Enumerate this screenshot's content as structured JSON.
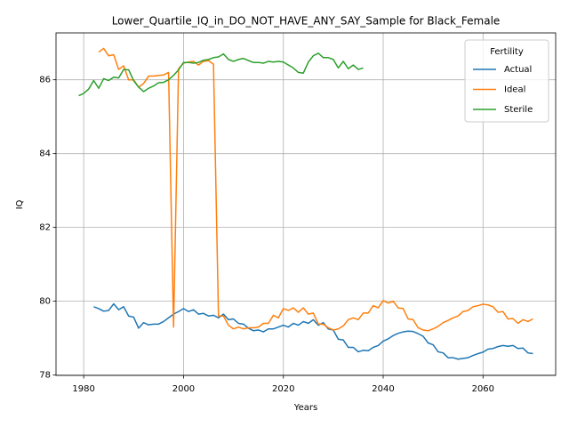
{
  "chart_data": {
    "type": "line",
    "title": "Lower_Quartile_IQ_in_DO_NOT_HAVE_ANY_SAY_Sample for Black_Female",
    "xlabel": "Years",
    "ylabel": "IQ",
    "legend_title": "Fertility",
    "legend": "upper right",
    "grid": true,
    "xlim": [
      1974.45,
      2074.55
    ],
    "xticks": [
      1980,
      2000,
      2020,
      2040,
      2060
    ],
    "ylim": [
      77.99,
      87.27
    ],
    "yticks": [
      78,
      80,
      82,
      84,
      86
    ],
    "x": [
      1979,
      1980,
      1981,
      1982,
      1983,
      1984,
      1985,
      1986,
      1987,
      1988,
      1989,
      1990,
      1991,
      1992,
      1993,
      1994,
      1995,
      1996,
      1997,
      1998,
      1999,
      2000,
      2001,
      2002,
      2003,
      2004,
      2005,
      2006,
      2007,
      2008,
      2009,
      2010,
      2011,
      2012,
      2013,
      2014,
      2015,
      2016,
      2017,
      2018,
      2019,
      2020,
      2021,
      2022,
      2023,
      2024,
      2025,
      2026,
      2027,
      2028,
      2029,
      2030,
      2031,
      2032,
      2033,
      2034,
      2035,
      2036,
      2037,
      2038,
      2039,
      2040,
      2041,
      2042,
      2043,
      2044,
      2045,
      2046,
      2047,
      2048,
      2049,
      2050,
      2051,
      2052,
      2053,
      2054,
      2055,
      2056,
      2057,
      2058,
      2059,
      2060,
      2061,
      2062,
      2063,
      2064,
      2065,
      2066,
      2067,
      2068,
      2069,
      2070
    ],
    "series": [
      {
        "name": "Actual",
        "color": "#1f77b4",
        "values": [
          null,
          null,
          null,
          79.85,
          79.8,
          79.73,
          79.75,
          79.93,
          79.77,
          79.85,
          79.6,
          79.57,
          79.27,
          79.42,
          79.36,
          79.38,
          79.38,
          79.45,
          79.55,
          79.65,
          79.72,
          79.8,
          79.72,
          79.77,
          79.65,
          79.67,
          79.6,
          79.62,
          79.55,
          79.65,
          79.5,
          79.52,
          79.4,
          79.38,
          79.27,
          79.2,
          79.22,
          79.17,
          79.25,
          79.25,
          79.3,
          79.35,
          79.3,
          79.4,
          79.35,
          79.45,
          79.4,
          79.5,
          79.35,
          79.42,
          79.25,
          79.22,
          78.97,
          78.95,
          78.75,
          78.75,
          78.63,
          78.67,
          78.66,
          78.75,
          78.8,
          78.92,
          78.98,
          79.07,
          79.13,
          79.17,
          79.19,
          79.18,
          79.12,
          79.05,
          78.87,
          78.82,
          78.63,
          78.6,
          78.47,
          78.47,
          78.43,
          78.45,
          78.47,
          78.53,
          78.58,
          78.62,
          78.7,
          78.72,
          78.77,
          78.8,
          78.78,
          78.8,
          78.72,
          78.73,
          78.6,
          78.58
        ]
      },
      {
        "name": "Ideal",
        "color": "#ff7f0e",
        "values": [
          null,
          null,
          null,
          null,
          86.75,
          86.85,
          86.65,
          86.68,
          86.28,
          86.38,
          86.0,
          86.0,
          85.8,
          85.9,
          86.1,
          86.1,
          86.12,
          86.13,
          86.2,
          79.3,
          86.3,
          86.45,
          86.48,
          86.5,
          86.4,
          86.5,
          86.52,
          86.42,
          79.6,
          79.6,
          79.35,
          79.25,
          79.3,
          79.25,
          79.28,
          79.28,
          79.3,
          79.4,
          79.4,
          79.62,
          79.55,
          79.8,
          79.75,
          79.82,
          79.7,
          79.82,
          79.65,
          79.68,
          79.38,
          79.38,
          79.28,
          79.22,
          79.25,
          79.33,
          79.5,
          79.55,
          79.5,
          79.68,
          79.68,
          79.88,
          79.82,
          80.02,
          79.95,
          80.0,
          79.82,
          79.8,
          79.52,
          79.5,
          79.28,
          79.22,
          79.2,
          79.25,
          79.32,
          79.42,
          79.48,
          79.55,
          79.6,
          79.72,
          79.75,
          79.85,
          79.88,
          79.92,
          79.9,
          79.85,
          79.7,
          79.72,
          79.52,
          79.53,
          79.4,
          79.5,
          79.45,
          79.52
        ]
      },
      {
        "name": "Sterile",
        "color": "#2ca02c",
        "values": [
          85.57,
          85.63,
          85.75,
          85.98,
          85.77,
          86.03,
          85.98,
          86.07,
          86.05,
          86.28,
          86.27,
          85.98,
          85.8,
          85.68,
          85.77,
          85.83,
          85.92,
          85.93,
          86.0,
          86.12,
          86.27,
          86.47,
          86.47,
          86.45,
          86.47,
          86.53,
          86.55,
          86.6,
          86.62,
          86.7,
          86.55,
          86.5,
          86.55,
          86.58,
          86.52,
          86.47,
          86.47,
          86.45,
          86.5,
          86.48,
          86.5,
          86.48,
          86.4,
          86.32,
          86.2,
          86.18,
          86.48,
          86.65,
          86.72,
          86.6,
          86.6,
          86.55,
          86.32,
          86.5,
          86.3,
          86.4,
          86.28,
          86.32,
          null,
          null,
          null,
          null,
          null,
          null,
          null,
          null,
          null,
          null,
          null,
          null,
          null,
          null,
          null,
          null,
          null,
          null,
          null,
          null,
          null,
          null,
          null,
          null,
          null,
          null,
          null,
          null,
          null,
          null,
          null,
          null,
          null,
          null
        ]
      }
    ]
  }
}
